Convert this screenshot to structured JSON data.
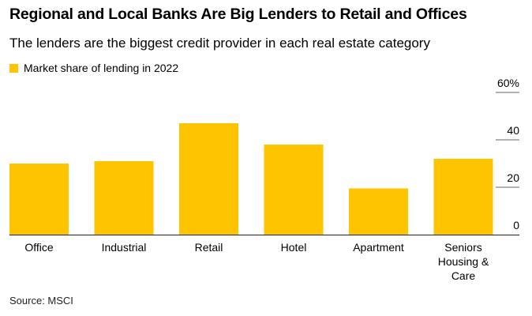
{
  "header": {
    "title": "Regional and Local Banks Are Big Lenders to Retail and Offices",
    "subtitle": "The lenders are the biggest credit provider in each real estate category"
  },
  "footer": {
    "source": "Source: MSCI"
  },
  "colors": {
    "bar": "#FFC400",
    "grid": "#666666",
    "axis": "#222222"
  },
  "chart_data": {
    "type": "bar",
    "categories": [
      "Office",
      "Industrial",
      "Retail",
      "Hotel",
      "Apartment",
      "Seniors Housing & Care"
    ],
    "category_lines": [
      [
        "Office"
      ],
      [
        "Industrial"
      ],
      [
        "Retail"
      ],
      [
        "Hotel"
      ],
      [
        "Apartment"
      ],
      [
        "Seniors",
        "Housing &",
        "Care"
      ]
    ],
    "series": [
      {
        "name": "Market share of lending in 2022",
        "values": [
          30,
          31,
          47,
          38,
          19.5,
          32
        ]
      }
    ],
    "yticks": [
      "0",
      "20",
      "40",
      "60%"
    ],
    "ytick_values": [
      0,
      20,
      40,
      60
    ],
    "ylim": [
      0,
      60
    ],
    "legend": "top-left",
    "grid": true
  }
}
